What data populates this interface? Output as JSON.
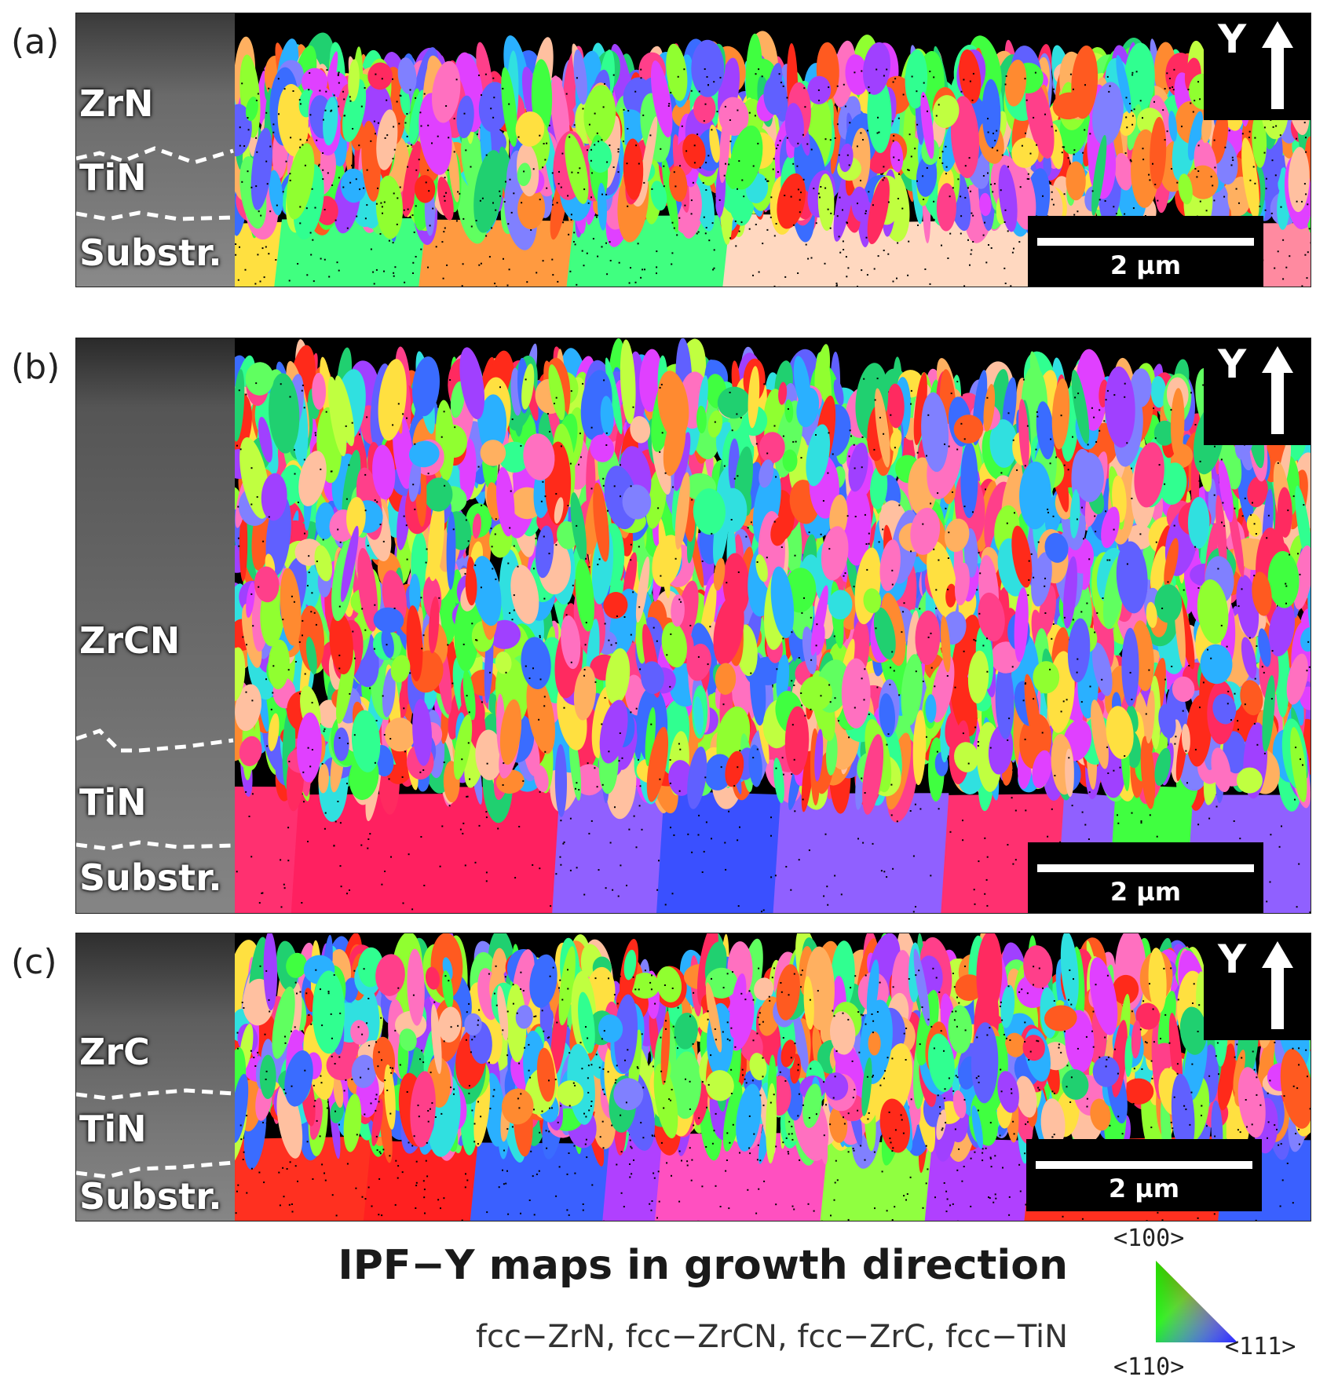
{
  "panels": [
    {
      "label": "(a)",
      "layers": [
        "ZrN",
        "TiN",
        "Substr."
      ],
      "axis_label": "Y",
      "scalebar": "2 µm"
    },
    {
      "label": "(b)",
      "layers": [
        "ZrCN",
        "TiN",
        "Substr."
      ],
      "axis_label": "Y",
      "scalebar": "2 µm"
    },
    {
      "label": "(c)",
      "layers": [
        "ZrC",
        "TiN",
        "Substr."
      ],
      "axis_label": "Y",
      "scalebar": "2 µm"
    }
  ],
  "caption": {
    "title": "IPF−Y maps in growth direction",
    "phases": "fcc−ZrN, fcc−ZrCN, fcc−ZrC, fcc−TiN"
  },
  "legend": {
    "top": "<100>",
    "bottom_left": "<110>",
    "bottom_right": "<111>",
    "colors": {
      "100": "#ff0000",
      "110": "#00ff00",
      "111": "#0000ff"
    }
  }
}
